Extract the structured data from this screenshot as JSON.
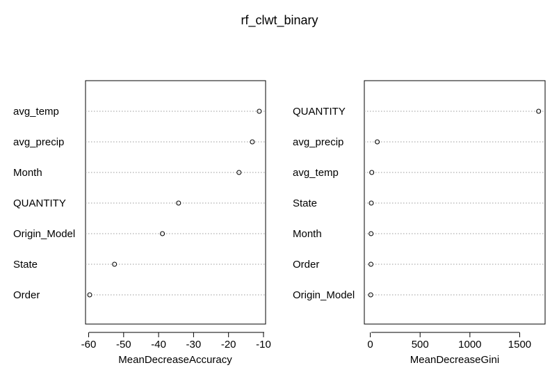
{
  "chart_data": {
    "title": "rf_clwt_binary",
    "panels": [
      {
        "type": "scatter",
        "style": "dotchart",
        "xlabel": "MeanDecreaseAccuracy",
        "xlim": [
          -60.9,
          -9.4
        ],
        "xticks": [
          -60,
          -50,
          -40,
          -30,
          -20,
          -10
        ],
        "grid": "dotted horizontal guides",
        "labels": [
          "avg_temp",
          "avg_precip",
          "Month",
          "QUANTITY",
          "Origin_Model",
          "State",
          "Order"
        ],
        "values": [
          -11.2,
          -13.2,
          -17.0,
          -34.3,
          -38.9,
          -52.6,
          -59.7
        ]
      },
      {
        "type": "scatter",
        "style": "dotchart",
        "xlabel": "MeanDecreaseGini",
        "xlim": [
          -60,
          1755
        ],
        "xticks": [
          0,
          500,
          1000,
          1500
        ],
        "grid": "dotted horizontal guides",
        "labels": [
          "QUANTITY",
          "avg_precip",
          "avg_temp",
          "State",
          "Month",
          "Order",
          "Origin_Model"
        ],
        "values": [
          1690,
          70,
          15,
          10,
          8,
          6,
          4
        ]
      }
    ]
  }
}
